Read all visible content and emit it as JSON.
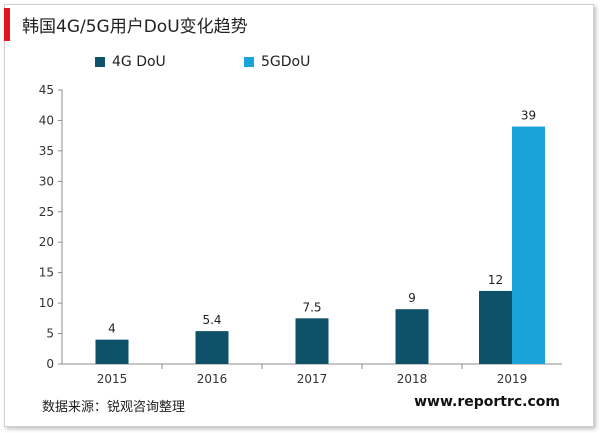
{
  "header": {
    "title": "韩国4G/5G用户DoU变化趋势",
    "accent_color": "#e2161d"
  },
  "footer": {
    "source": "数据来源：锐观咨询整理",
    "website": "www.reportrc.com"
  },
  "chart_data": {
    "type": "bar",
    "title": "韩国4G/5G用户DoU变化趋势",
    "xlabel": "",
    "ylabel": "",
    "categories": [
      "2015",
      "2016",
      "2017",
      "2018",
      "2019"
    ],
    "series": [
      {
        "name": "4G DoU",
        "color": "#0e5168",
        "values": [
          4,
          5.4,
          7.5,
          9,
          12
        ]
      },
      {
        "name": "5GDoU",
        "color": "#1aa3d9",
        "values": [
          null,
          null,
          null,
          null,
          39
        ]
      }
    ],
    "ylim": [
      0,
      45
    ],
    "yticks": [
      0,
      5,
      10,
      15,
      20,
      25,
      30,
      35,
      40,
      45
    ],
    "grid": false,
    "legend_position": "top-left"
  }
}
